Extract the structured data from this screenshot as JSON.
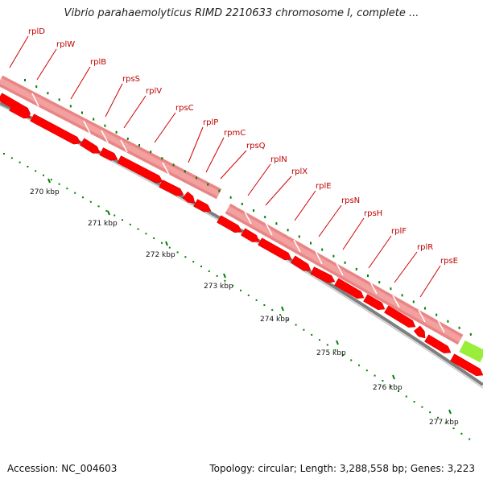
{
  "title": "Vibrio parahaemolyticus RIMD 2210633 chromosome I, complete ...",
  "footer": {
    "accession": "Accession: NC_004603",
    "summary": "Topology: circular; Length: 3,288,558 bp; Genes: 3,223"
  },
  "colors": {
    "gene_arrow": "#ff0000",
    "cds_block": "#f08080",
    "rrna_block": "#9aee3a",
    "label_text": "#c00000",
    "tick_mark": "#008000",
    "backbone": "#808080"
  },
  "genes": [
    {
      "name": "rplD",
      "start": 268280
    },
    {
      "name": "rplW",
      "start": 268650
    },
    {
      "name": "rplB",
      "start": 269100
    },
    {
      "name": "rpsS",
      "start": 269520
    },
    {
      "name": "rplV",
      "start": 269840
    },
    {
      "name": "rpsC",
      "start": 270280
    },
    {
      "name": "rplP",
      "start": 270680
    },
    {
      "name": "rpmC",
      "start": 270920
    },
    {
      "name": "rpsQ",
      "start": 271150
    },
    {
      "name": "rplN",
      "start": 271620
    },
    {
      "name": "rplX",
      "start": 271980
    },
    {
      "name": "rplE",
      "start": 272420
    },
    {
      "name": "rpsN",
      "start": 272830
    },
    {
      "name": "rpsH",
      "start": 273150
    },
    {
      "name": "rplF",
      "start": 273570
    },
    {
      "name": "rplR",
      "start": 273980
    },
    {
      "name": "rpsE",
      "start": 274330
    }
  ],
  "ticks": [
    {
      "label": "270 kbp",
      "position": 270000
    },
    {
      "label": "271 kbp",
      "position": 271000
    },
    {
      "label": "272 kbp",
      "position": 272000
    },
    {
      "label": "273 kbp",
      "position": 273000
    },
    {
      "label": "274 kbp",
      "position": 274000
    },
    {
      "label": "275 kbp",
      "position": 275000
    },
    {
      "label": "276 kbp",
      "position": 276000
    },
    {
      "label": "277 kbp",
      "position": 277000
    }
  ]
}
